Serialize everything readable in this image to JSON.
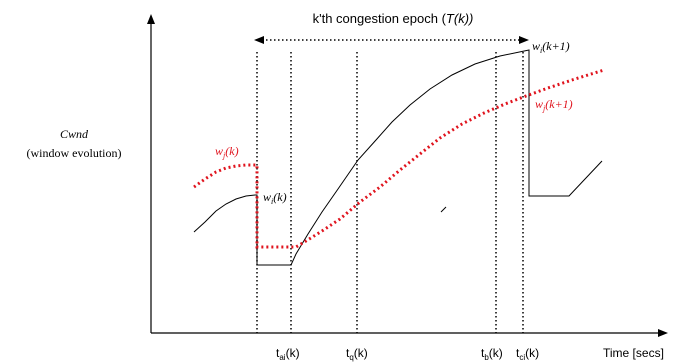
{
  "title": {
    "prefix": "k'th congestion epoch (",
    "T": "T",
    "k": "(k))"
  },
  "y_axis": {
    "label_line1": "Cwnd",
    "label_line2": "(window evolution)"
  },
  "x_axis": {
    "label": "Time [secs]"
  },
  "ticks": [
    {
      "t": "t",
      "sub": "ai",
      "arg": "(k)"
    },
    {
      "t": "t",
      "sub": "q",
      "arg": "(k)"
    },
    {
      "t": "t",
      "sub": "b",
      "arg": "(k)"
    },
    {
      "t": "t",
      "sub": "ci",
      "arg": "(k)"
    }
  ],
  "curve_labels": {
    "wi_k": {
      "w": "w",
      "sub": "i",
      "arg": "(k)"
    },
    "wj_k": {
      "w": "w",
      "sub": "j",
      "arg": "(k)"
    },
    "wi_k1": {
      "w": "w",
      "sub": "i",
      "arg": "(k+1)"
    },
    "wj_k1": {
      "w": "w",
      "sub": "j",
      "arg": "(k+1)"
    }
  },
  "colors": {
    "axis": "#000000",
    "flow_i": "#000000",
    "flow_j": "#e0141e"
  }
}
